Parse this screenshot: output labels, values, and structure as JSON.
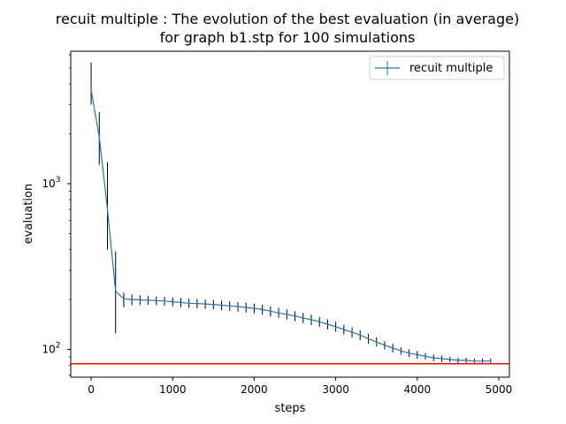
{
  "chart_data": {
    "type": "line",
    "title_lines": [
      "recuit multiple : The evolution of the best evaluation (in average)",
      "for graph b1.stp for 100 simulations"
    ],
    "xlabel": "steps",
    "ylabel": "evaluation",
    "xlim": [
      -250,
      5130
    ],
    "ylim": [
      68,
      6300
    ],
    "yscale": "log",
    "xticks": [
      0,
      1000,
      2000,
      3000,
      4000,
      5000
    ],
    "xtick_labels": [
      "0",
      "1000",
      "2000",
      "3000",
      "4000",
      "5000"
    ],
    "yticks_major": [
      {
        "value": 100,
        "base": "10",
        "exp": "2"
      },
      {
        "value": 1000,
        "base": "10",
        "exp": "3"
      }
    ],
    "yticks_minor": [
      70,
      80,
      90,
      200,
      300,
      400,
      500,
      600,
      700,
      800,
      900,
      2000,
      3000,
      4000,
      5000,
      6000
    ],
    "grid": false,
    "legend": {
      "position": "top-right",
      "entries": [
        "recuit multiple"
      ]
    },
    "reference_line": {
      "y": 82,
      "color": "#ff0000"
    },
    "colors": {
      "series": "#1f77b4",
      "errorbar": "#000000",
      "reference": "#ff0000"
    },
    "series": [
      {
        "name": "recuit multiple",
        "x": [
          0,
          100,
          200,
          300,
          400,
          500,
          600,
          700,
          800,
          900,
          1000,
          1100,
          1200,
          1300,
          1400,
          1500,
          1600,
          1700,
          1800,
          1900,
          2000,
          2100,
          2200,
          2300,
          2400,
          2500,
          2600,
          2700,
          2800,
          2900,
          3000,
          3100,
          3200,
          3300,
          3400,
          3500,
          3600,
          3700,
          3800,
          3900,
          4000,
          4100,
          4200,
          4300,
          4400,
          4500,
          4600,
          4700,
          4800,
          4900
        ],
        "y": [
          3700,
          1900,
          700,
          225,
          202,
          200,
          199,
          198,
          197,
          196,
          194,
          192,
          190,
          189,
          188,
          187,
          185,
          183,
          181,
          179,
          177,
          174,
          170,
          166,
          163,
          159,
          155,
          151,
          147,
          142,
          137,
          132,
          127,
          122,
          116,
          111,
          106,
          102,
          98,
          95,
          93,
          91,
          89,
          88,
          87,
          86,
          86,
          85,
          85,
          85
        ],
        "yerr_low": [
          3000,
          1300,
          400,
          125,
          180,
          185,
          186,
          186,
          185,
          184,
          182,
          180,
          178,
          177,
          176,
          175,
          173,
          171,
          169,
          167,
          165,
          162,
          158,
          155,
          152,
          148,
          144,
          140,
          137,
          132,
          128,
          123,
          118,
          114,
          108,
          104,
          100,
          96,
          93,
          90,
          88,
          87,
          85,
          84,
          84,
          83,
          83,
          83,
          83,
          83
        ],
        "yerr_high": [
          5400,
          2700,
          1350,
          390,
          220,
          215,
          212,
          210,
          209,
          208,
          206,
          204,
          202,
          201,
          200,
          199,
          197,
          195,
          193,
          191,
          189,
          186,
          182,
          178,
          174,
          170,
          166,
          162,
          157,
          152,
          147,
          141,
          136,
          130,
          124,
          118,
          112,
          108,
          103,
          100,
          98,
          95,
          93,
          92,
          90,
          89,
          89,
          88,
          88,
          88
        ]
      }
    ]
  }
}
